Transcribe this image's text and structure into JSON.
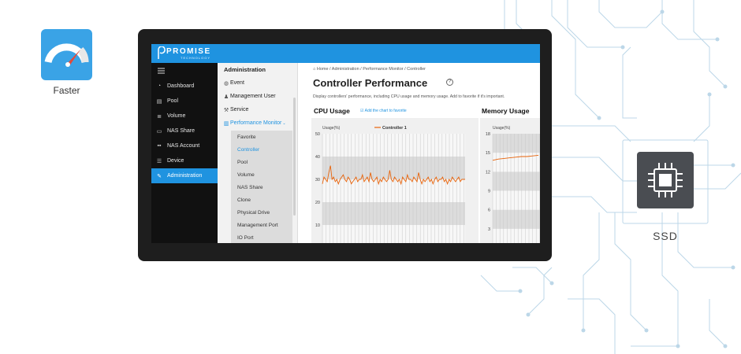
{
  "badges": {
    "faster_label": "Faster",
    "ssd_label": "SSD",
    "colors": {
      "faster_tile": "#3aa3e6",
      "ssd_tile": "#4a4d52"
    }
  },
  "app": {
    "brand": "PROMISE",
    "brand_sub": "TECHNOLOGY",
    "accent": "#1f93e0"
  },
  "sidebar": {
    "items": [
      {
        "label": "Dashboard",
        "icon": "dashboard-icon",
        "active": false
      },
      {
        "label": "Pool",
        "icon": "pool-icon",
        "active": false
      },
      {
        "label": "Volume",
        "icon": "volume-icon",
        "active": false
      },
      {
        "label": "NAS Share",
        "icon": "folder-icon",
        "active": false
      },
      {
        "label": "NAS Account",
        "icon": "account-icon",
        "active": false
      },
      {
        "label": "Device",
        "icon": "device-icon",
        "active": false
      },
      {
        "label": "Administration",
        "icon": "wrench-icon",
        "active": true
      }
    ]
  },
  "subnav": {
    "title": "Administration",
    "items": [
      {
        "label": "Event",
        "icon": "event-icon"
      },
      {
        "label": "Management User",
        "icon": "user-icon"
      },
      {
        "label": "Service",
        "icon": "service-icon"
      },
      {
        "label": "Performance Monitor",
        "icon": "chart-icon"
      }
    ],
    "children": [
      "Favorite",
      "Controller",
      "Pool",
      "Volume",
      "NAS Share",
      "Clone",
      "Physical Drive",
      "Management Port",
      "IO Port"
    ]
  },
  "main": {
    "breadcrumb": "⌂ Home  /  Administration  /  Performance Monitor  /  Controller",
    "title": "Controller Performance",
    "help": "?",
    "description": "Display controllers' performance, including CPU usage and memory usage. Add to favorite if it's important.",
    "cpu_title": "CPU Usage",
    "favorite_link": "Add the chart to favorite",
    "mem_title": "Memory Usage"
  },
  "chart_data": [
    {
      "type": "line",
      "title": "CPU Usage",
      "ylabel": "Usage(%)",
      "ylim": [
        0,
        50
      ],
      "yticks": [
        "50",
        "40",
        "30",
        "20",
        "10"
      ],
      "series": [
        {
          "name": "Controller 1",
          "color": "#e8630a",
          "values": [
            28,
            31,
            30,
            29,
            33,
            36,
            30,
            31,
            29,
            30,
            28,
            30,
            31,
            32,
            30,
            29,
            31,
            30,
            28,
            29,
            30,
            31,
            29,
            30,
            30,
            32,
            29,
            30,
            31,
            29,
            33,
            30,
            29,
            30,
            31,
            28,
            30,
            29,
            31,
            30,
            29,
            30,
            34,
            30,
            29,
            31,
            30,
            29,
            30,
            28,
            31,
            30,
            29,
            32,
            30,
            30,
            29,
            31,
            30,
            29,
            33,
            30,
            28,
            30,
            29,
            30,
            31,
            29,
            30,
            28,
            30,
            31,
            29,
            30,
            30,
            31,
            29,
            30,
            28,
            30,
            29,
            31,
            30,
            29,
            30,
            31,
            29,
            30,
            30,
            30
          ]
        }
      ],
      "grid": true,
      "legend": "top"
    },
    {
      "type": "line",
      "title": "Memory Usage",
      "ylabel": "Usage(%)",
      "ylim": [
        0,
        18
      ],
      "yticks": [
        "18",
        "15",
        "12",
        "9",
        "6",
        "3"
      ],
      "series": [
        {
          "color": "#e8630a",
          "values": [
            13.8,
            14.0,
            14.1,
            14.2,
            14.3,
            14.4,
            14.4,
            14.5,
            14.6
          ]
        }
      ],
      "grid": true
    }
  ]
}
